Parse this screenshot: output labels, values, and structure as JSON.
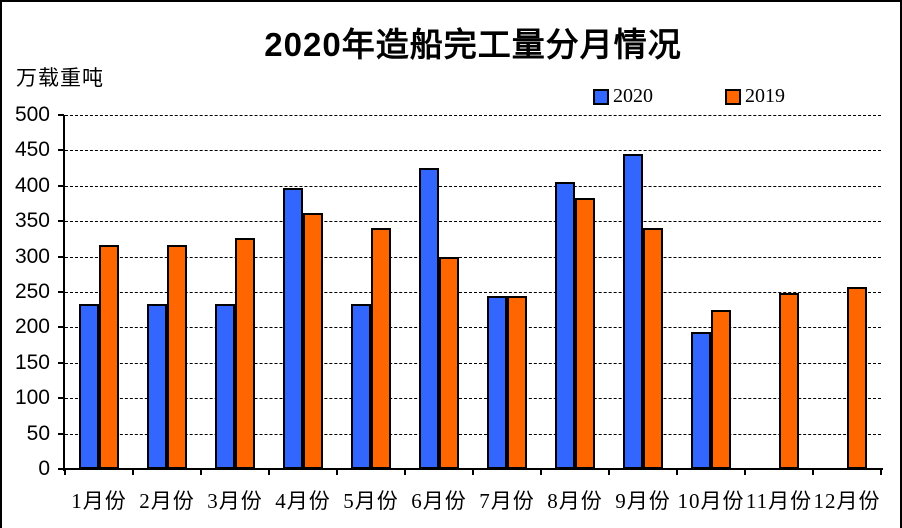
{
  "title": "2020年造船完工量分月情况",
  "y_axis_unit": "万载重吨",
  "legend": {
    "items": [
      {
        "label": "2020",
        "color": "#3366FF"
      },
      {
        "label": "2019",
        "color": "#FF6600"
      }
    ]
  },
  "chart_data": {
    "type": "bar",
    "title": "2020年造船完工量分月情况",
    "ylabel": "万载重吨",
    "xlabel": "",
    "categories": [
      "1月份",
      "2月份",
      "3月份",
      "4月份",
      "5月份",
      "6月份",
      "7月份",
      "8月份",
      "9月份",
      "10月份",
      "11月份",
      "12月份"
    ],
    "series": [
      {
        "name": "2020",
        "color": "#3366FF",
        "values": [
          233,
          233,
          233,
          397,
          233,
          425,
          244,
          406,
          445,
          193,
          null,
          null
        ]
      },
      {
        "name": "2019",
        "color": "#FF6600",
        "values": [
          317,
          317,
          326,
          362,
          341,
          299,
          244,
          383,
          341,
          225,
          249,
          257
        ]
      }
    ],
    "ylim": [
      0,
      500
    ],
    "yticks": [
      0,
      50,
      100,
      150,
      200,
      250,
      300,
      350,
      400,
      450,
      500
    ],
    "grid": "horizontal-dashed",
    "legend_position": "top"
  }
}
